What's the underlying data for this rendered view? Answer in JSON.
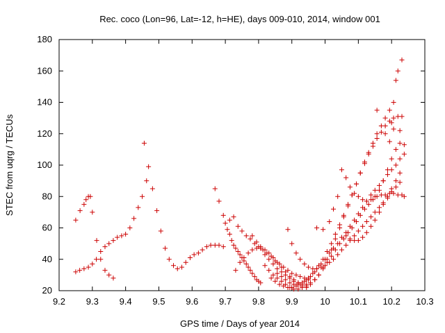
{
  "chart_data": {
    "type": "scatter",
    "title": "Rec. coco (Lon=96, Lat=-12, h=HE), days 009-010, 2014, window 001",
    "xlabel": "GPS time / Days of year 2014",
    "ylabel": "STEC from uqrg / TECUs",
    "xlim": [
      9.2,
      10.3
    ],
    "ylim": [
      20,
      180
    ],
    "xticks": [
      "9.2",
      "9.3",
      "9.4",
      "9.5",
      "9.6",
      "9.7",
      "9.8",
      "9.9",
      "10",
      "10.1",
      "10.2",
      "10.3"
    ],
    "yticks": [
      "20",
      "40",
      "60",
      "80",
      "100",
      "120",
      "140",
      "160",
      "180"
    ],
    "grid": false,
    "marker": "+",
    "marker_color": "#cc0000",
    "points": [
      [
        9.25,
        32
      ],
      [
        9.262,
        33
      ],
      [
        9.275,
        34
      ],
      [
        9.288,
        35
      ],
      [
        9.3,
        37
      ],
      [
        9.312,
        40
      ],
      [
        9.325,
        45
      ],
      [
        9.338,
        48
      ],
      [
        9.35,
        50
      ],
      [
        9.363,
        52
      ],
      [
        9.375,
        54
      ],
      [
        9.388,
        55
      ],
      [
        9.4,
        56
      ],
      [
        9.413,
        60
      ],
      [
        9.425,
        66
      ],
      [
        9.438,
        73
      ],
      [
        9.45,
        80
      ],
      [
        9.463,
        90
      ],
      [
        9.469,
        99
      ],
      [
        9.25,
        65
      ],
      [
        9.263,
        71
      ],
      [
        9.275,
        75
      ],
      [
        9.281,
        78
      ],
      [
        9.288,
        80
      ],
      [
        9.294,
        80
      ],
      [
        9.3,
        70
      ],
      [
        9.313,
        52
      ],
      [
        9.325,
        40
      ],
      [
        9.338,
        33
      ],
      [
        9.35,
        30
      ],
      [
        9.363,
        28
      ],
      [
        9.456,
        114
      ],
      [
        9.481,
        85
      ],
      [
        9.494,
        71
      ],
      [
        9.506,
        58
      ],
      [
        9.519,
        47
      ],
      [
        9.531,
        40
      ],
      [
        9.544,
        36
      ],
      [
        9.556,
        34
      ],
      [
        9.569,
        35
      ],
      [
        9.581,
        38
      ],
      [
        9.594,
        41
      ],
      [
        9.606,
        43
      ],
      [
        9.619,
        44
      ],
      [
        9.631,
        46
      ],
      [
        9.644,
        48
      ],
      [
        9.656,
        49
      ],
      [
        9.669,
        49
      ],
      [
        9.681,
        49
      ],
      [
        9.694,
        48
      ],
      [
        9.669,
        85
      ],
      [
        9.681,
        77
      ],
      [
        9.694,
        68
      ],
      [
        9.7,
        63
      ],
      [
        9.706,
        59
      ],
      [
        9.713,
        56
      ],
      [
        9.719,
        52
      ],
      [
        9.725,
        49
      ],
      [
        9.731,
        47
      ],
      [
        9.738,
        45
      ],
      [
        9.744,
        43
      ],
      [
        9.75,
        41
      ],
      [
        9.756,
        39
      ],
      [
        9.763,
        37
      ],
      [
        9.769,
        35
      ],
      [
        9.775,
        33
      ],
      [
        9.781,
        31
      ],
      [
        9.788,
        29
      ],
      [
        9.794,
        27
      ],
      [
        9.8,
        26
      ],
      [
        9.806,
        25
      ],
      [
        9.713,
        65
      ],
      [
        9.725,
        67
      ],
      [
        9.738,
        61
      ],
      [
        9.75,
        58
      ],
      [
        9.763,
        55
      ],
      [
        9.775,
        53
      ],
      [
        9.788,
        50
      ],
      [
        9.8,
        48
      ],
      [
        9.813,
        46
      ],
      [
        9.825,
        44
      ],
      [
        9.838,
        42
      ],
      [
        9.85,
        39
      ],
      [
        9.863,
        37
      ],
      [
        9.875,
        35
      ],
      [
        9.888,
        33
      ],
      [
        9.9,
        31
      ],
      [
        9.913,
        30
      ],
      [
        9.925,
        29
      ],
      [
        9.938,
        28
      ],
      [
        9.95,
        27
      ],
      [
        9.731,
        33
      ],
      [
        9.744,
        38
      ],
      [
        9.756,
        41
      ],
      [
        9.769,
        44
      ],
      [
        9.781,
        46
      ],
      [
        9.794,
        47
      ],
      [
        9.806,
        48
      ],
      [
        9.819,
        46
      ],
      [
        9.831,
        44
      ],
      [
        9.844,
        41
      ],
      [
        9.856,
        38
      ],
      [
        9.869,
        35
      ],
      [
        9.881,
        32
      ],
      [
        9.894,
        29
      ],
      [
        9.906,
        27
      ],
      [
        9.919,
        25
      ],
      [
        9.931,
        23
      ],
      [
        9.944,
        22
      ],
      [
        9.781,
        55
      ],
      [
        9.794,
        51
      ],
      [
        9.806,
        47
      ],
      [
        9.819,
        43
      ],
      [
        9.831,
        40
      ],
      [
        9.844,
        37
      ],
      [
        9.856,
        34
      ],
      [
        9.869,
        32
      ],
      [
        9.881,
        30
      ],
      [
        9.894,
        28
      ],
      [
        9.906,
        26
      ],
      [
        9.919,
        25
      ],
      [
        9.931,
        24
      ],
      [
        9.944,
        24
      ],
      [
        9.956,
        25
      ],
      [
        9.969,
        27
      ],
      [
        9.981,
        30
      ],
      [
        9.994,
        34
      ],
      [
        10.006,
        40
      ],
      [
        10.019,
        46
      ],
      [
        10.031,
        53
      ],
      [
        10.044,
        60
      ],
      [
        10.056,
        67
      ],
      [
        10.069,
        74
      ],
      [
        10.081,
        81
      ],
      [
        10.094,
        88
      ],
      [
        10.106,
        95
      ],
      [
        10.119,
        102
      ],
      [
        10.131,
        108
      ],
      [
        10.144,
        114
      ],
      [
        10.156,
        120
      ],
      [
        10.169,
        125
      ],
      [
        10.181,
        130
      ],
      [
        10.194,
        135
      ],
      [
        10.206,
        140
      ],
      [
        10.213,
        154
      ],
      [
        10.219,
        160
      ],
      [
        10.231,
        167
      ],
      [
        9.819,
        36
      ],
      [
        9.831,
        33
      ],
      [
        9.844,
        30
      ],
      [
        9.856,
        28
      ],
      [
        9.869,
        26
      ],
      [
        9.881,
        24
      ],
      [
        9.894,
        22
      ],
      [
        9.906,
        21
      ],
      [
        9.919,
        21
      ],
      [
        9.931,
        22
      ],
      [
        9.944,
        23
      ],
      [
        9.956,
        24
      ],
      [
        9.969,
        27
      ],
      [
        9.981,
        30
      ],
      [
        9.994,
        35
      ],
      [
        10.006,
        38
      ],
      [
        10.019,
        42
      ],
      [
        10.031,
        46
      ],
      [
        10.044,
        50
      ],
      [
        10.056,
        53
      ],
      [
        10.069,
        57
      ],
      [
        10.081,
        60
      ],
      [
        10.094,
        64
      ],
      [
        10.106,
        68
      ],
      [
        10.119,
        72
      ],
      [
        10.131,
        75
      ],
      [
        10.144,
        78
      ],
      [
        10.156,
        80
      ],
      [
        10.169,
        81
      ],
      [
        10.181,
        81
      ],
      [
        10.194,
        82
      ],
      [
        10.206,
        82
      ],
      [
        10.219,
        81
      ],
      [
        10.231,
        81
      ],
      [
        10.238,
        80
      ],
      [
        9.838,
        28
      ],
      [
        9.85,
        26
      ],
      [
        9.863,
        24
      ],
      [
        9.875,
        23
      ],
      [
        9.888,
        22
      ],
      [
        9.9,
        22
      ],
      [
        9.913,
        23
      ],
      [
        9.925,
        24
      ],
      [
        9.938,
        26
      ],
      [
        9.95,
        28
      ],
      [
        9.963,
        31
      ],
      [
        9.975,
        34
      ],
      [
        9.988,
        37
      ],
      [
        10.0,
        40
      ],
      [
        10.013,
        44
      ],
      [
        10.025,
        47
      ],
      [
        10.038,
        50
      ],
      [
        10.05,
        54
      ],
      [
        10.063,
        57
      ],
      [
        10.075,
        61
      ],
      [
        10.088,
        65
      ],
      [
        10.1,
        69
      ],
      [
        10.113,
        73
      ],
      [
        10.125,
        77
      ],
      [
        10.138,
        81
      ],
      [
        10.15,
        84
      ],
      [
        10.163,
        87
      ],
      [
        10.175,
        90
      ],
      [
        10.188,
        94
      ],
      [
        10.2,
        97
      ],
      [
        10.213,
        100
      ],
      [
        10.225,
        104
      ],
      [
        10.238,
        107
      ],
      [
        9.856,
        31
      ],
      [
        9.869,
        29
      ],
      [
        9.881,
        27
      ],
      [
        9.894,
        25
      ],
      [
        9.906,
        24
      ],
      [
        9.919,
        24
      ],
      [
        9.931,
        25
      ],
      [
        9.944,
        27
      ],
      [
        9.956,
        29
      ],
      [
        9.969,
        32
      ],
      [
        9.981,
        36
      ],
      [
        9.994,
        40
      ],
      [
        10.006,
        45
      ],
      [
        10.019,
        50
      ],
      [
        10.031,
        56
      ],
      [
        10.044,
        62
      ],
      [
        10.056,
        68
      ],
      [
        10.069,
        75
      ],
      [
        10.081,
        81
      ],
      [
        10.094,
        88
      ],
      [
        10.106,
        95
      ],
      [
        10.119,
        101
      ],
      [
        10.131,
        107
      ],
      [
        10.144,
        112
      ],
      [
        10.156,
        117
      ],
      [
        10.169,
        121
      ],
      [
        10.181,
        125
      ],
      [
        10.194,
        128
      ],
      [
        10.206,
        130
      ],
      [
        10.219,
        131
      ],
      [
        10.231,
        131
      ],
      [
        9.888,
        59
      ],
      [
        9.9,
        50
      ],
      [
        9.913,
        44
      ],
      [
        9.925,
        40
      ],
      [
        9.938,
        37
      ],
      [
        9.95,
        35
      ],
      [
        9.963,
        34
      ],
      [
        9.975,
        34
      ],
      [
        9.988,
        35
      ],
      [
        10.0,
        36
      ],
      [
        10.013,
        38
      ],
      [
        10.025,
        40
      ],
      [
        10.038,
        43
      ],
      [
        10.05,
        46
      ],
      [
        10.063,
        49
      ],
      [
        10.075,
        52
      ],
      [
        10.088,
        55
      ],
      [
        10.1,
        58
      ],
      [
        10.113,
        61
      ],
      [
        10.125,
        64
      ],
      [
        10.138,
        67
      ],
      [
        10.15,
        70
      ],
      [
        10.163,
        73
      ],
      [
        10.175,
        76
      ],
      [
        10.188,
        79
      ],
      [
        10.2,
        83
      ],
      [
        10.213,
        86
      ],
      [
        10.225,
        89
      ],
      [
        9.975,
        60
      ],
      [
        9.994,
        59
      ],
      [
        10.013,
        64
      ],
      [
        10.025,
        72
      ],
      [
        10.038,
        80
      ],
      [
        10.05,
        97
      ],
      [
        10.063,
        92
      ],
      [
        10.075,
        86
      ],
      [
        10.088,
        82
      ],
      [
        10.1,
        80
      ],
      [
        10.113,
        78
      ],
      [
        10.125,
        77
      ],
      [
        10.138,
        78
      ],
      [
        10.15,
        80
      ],
      [
        10.163,
        84
      ],
      [
        10.175,
        90
      ],
      [
        10.188,
        97
      ],
      [
        10.2,
        104
      ],
      [
        10.213,
        110
      ],
      [
        10.225,
        114
      ],
      [
        10.063,
        55
      ],
      [
        10.075,
        53
      ],
      [
        10.088,
        52
      ],
      [
        10.1,
        52
      ],
      [
        10.113,
        54
      ],
      [
        10.125,
        57
      ],
      [
        10.138,
        61
      ],
      [
        10.15,
        65
      ],
      [
        10.163,
        70
      ],
      [
        10.175,
        75
      ],
      [
        10.188,
        80
      ],
      [
        10.2,
        85
      ],
      [
        10.213,
        90
      ],
      [
        10.225,
        95
      ],
      [
        10.156,
        135
      ],
      [
        10.181,
        120
      ],
      [
        10.194,
        115
      ],
      [
        10.2,
        127
      ],
      [
        10.206,
        123
      ],
      [
        10.225,
        122
      ],
      [
        10.238,
        113
      ]
    ]
  }
}
